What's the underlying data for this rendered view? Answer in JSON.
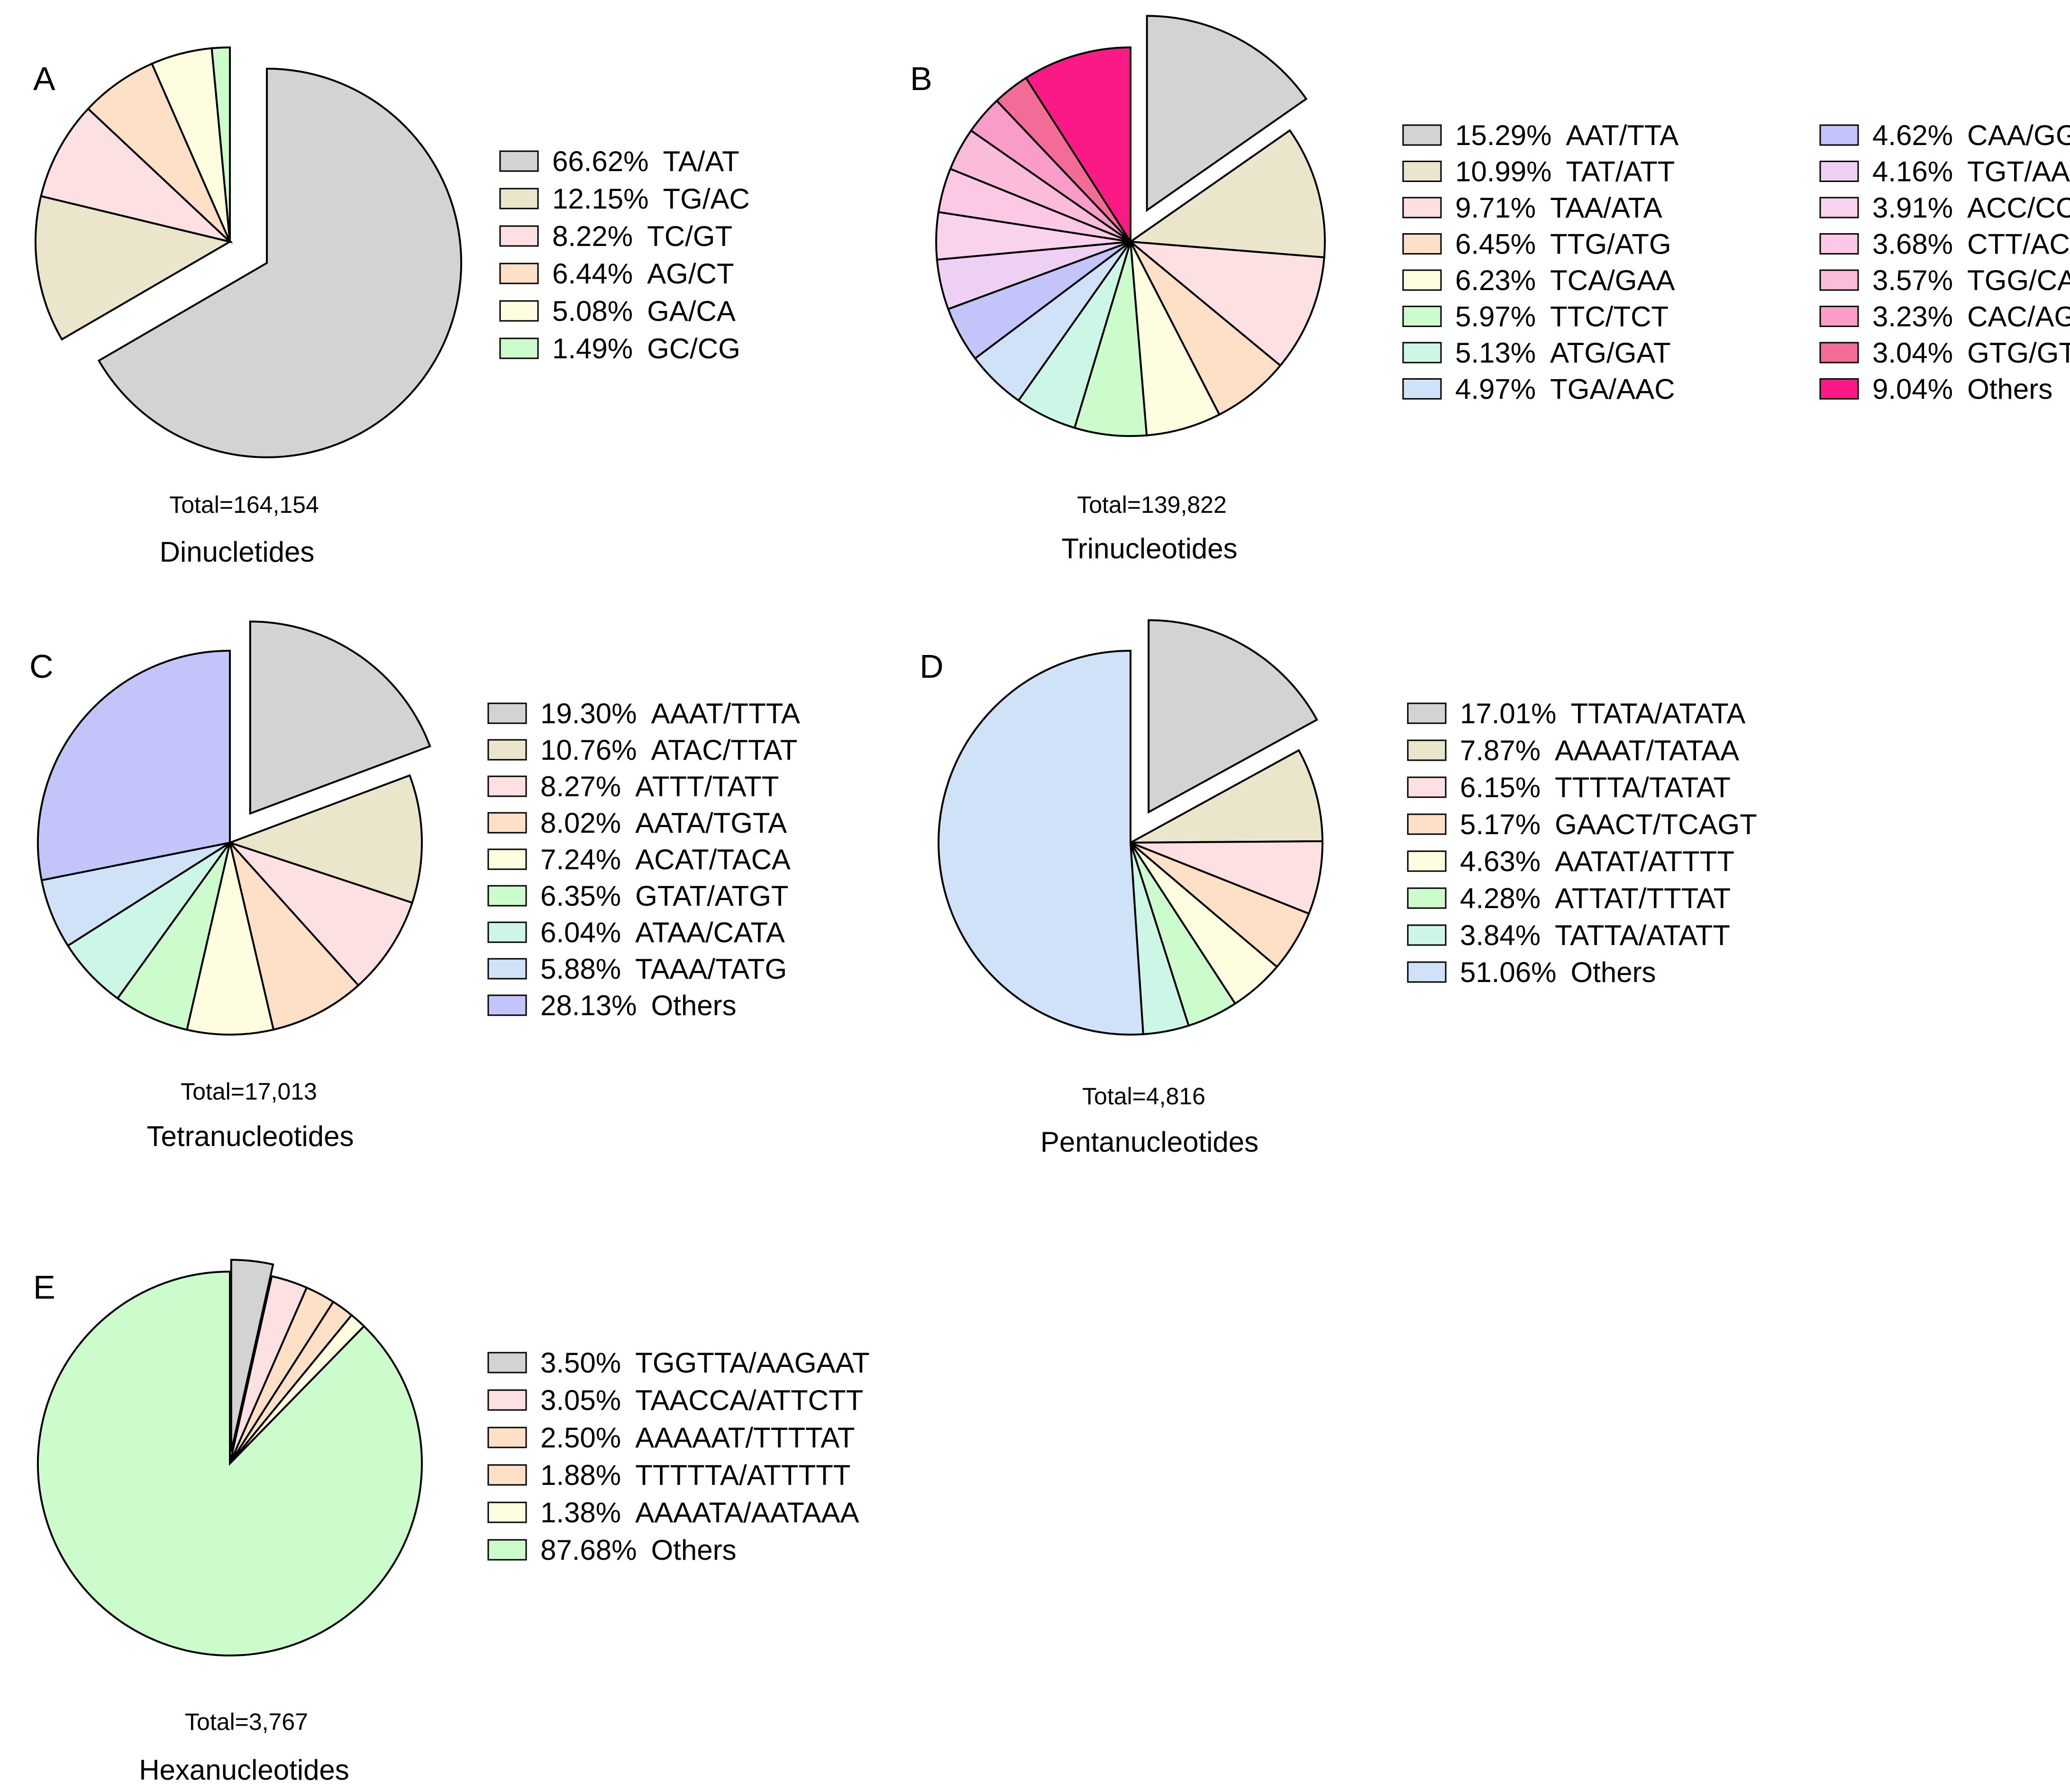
{
  "chart_data": [
    {
      "type": "pie",
      "panel": "A",
      "title": "Dinucletides",
      "total_label": "Total=164,154",
      "legend_columns": 1,
      "slices": [
        {
          "value": 66.62,
          "pct_label": "66.62%",
          "label": "TA/AT",
          "color": "#d3d3d3",
          "exploded": true
        },
        {
          "value": 12.15,
          "pct_label": "12.15%",
          "label": "TG/AC",
          "color": "#ebe5cc",
          "exploded": false
        },
        {
          "value": 8.22,
          "pct_label": "8.22%",
          "label": "TC/GT",
          "color": "#fde0e2",
          "exploded": false
        },
        {
          "value": 6.44,
          "pct_label": "6.44%",
          "label": "AG/CT",
          "color": "#fde0c6",
          "exploded": false
        },
        {
          "value": 5.08,
          "pct_label": "5.08%",
          "label": "GA/CA",
          "color": "#fefde0",
          "exploded": false
        },
        {
          "value": 1.49,
          "pct_label": "1.49%",
          "label": "GC/CG",
          "color": "#ccfccc",
          "exploded": false
        }
      ]
    },
    {
      "type": "pie",
      "panel": "B",
      "title": "Trinucleotides",
      "total_label": "Total=139,822",
      "legend_columns": 2,
      "slices": [
        {
          "value": 15.29,
          "pct_label": "15.29%",
          "label": "AAT/TTA",
          "color": "#d3d3d3",
          "exploded": true
        },
        {
          "value": 10.99,
          "pct_label": "10.99%",
          "label": "TAT/ATT",
          "color": "#ebe5cc",
          "exploded": false
        },
        {
          "value": 9.71,
          "pct_label": "9.71%",
          "label": "TAA/ATA",
          "color": "#fde0e2",
          "exploded": false
        },
        {
          "value": 6.45,
          "pct_label": "6.45%",
          "label": "TTG/ATG",
          "color": "#fde0c6",
          "exploded": false
        },
        {
          "value": 6.23,
          "pct_label": "6.23%",
          "label": "TCA/GAA",
          "color": "#fefde0",
          "exploded": false
        },
        {
          "value": 5.97,
          "pct_label": "5.97%",
          "label": "TTC/TCT",
          "color": "#ccfccc",
          "exploded": false
        },
        {
          "value": 5.13,
          "pct_label": "5.13%",
          "label": "ATG/GAT",
          "color": "#ccf7e6",
          "exploded": false
        },
        {
          "value": 4.97,
          "pct_label": "4.97%",
          "label": "TGA/AAC",
          "color": "#cfe2f7",
          "exploded": false
        },
        {
          "value": 4.62,
          "pct_label": "4.62%",
          "label": "CAA/GGT",
          "color": "#c2c4fa",
          "exploded": false
        },
        {
          "value": 4.16,
          "pct_label": "4.16%",
          "label": "TGT/AAG",
          "color": "#efd0f5",
          "exploded": false
        },
        {
          "value": 3.91,
          "pct_label": "3.91%",
          "label": "ACC/CCA",
          "color": "#f9d2ee",
          "exploded": false
        },
        {
          "value": 3.68,
          "pct_label": "3.68%",
          "label": "CTT/ACA",
          "color": "#fcc8e6",
          "exploded": false
        },
        {
          "value": 3.57,
          "pct_label": "3.57%",
          "label": "TGG/CAT",
          "color": "#fbbcdc",
          "exploded": false
        },
        {
          "value": 3.23,
          "pct_label": "3.23%",
          "label": "CAC/AGA",
          "color": "#f99cc9",
          "exploded": false
        },
        {
          "value": 3.04,
          "pct_label": "3.04%",
          "label": "GTG/GTT",
          "color": "#f36c98",
          "exploded": false
        },
        {
          "value": 9.04,
          "pct_label": "9.04%",
          "label": "Others",
          "color": "#fb1a85",
          "exploded": false
        }
      ]
    },
    {
      "type": "pie",
      "panel": "C",
      "title": "Tetranucleotides",
      "total_label": "Total=17,013",
      "legend_columns": 1,
      "slices": [
        {
          "value": 19.3,
          "pct_label": "19.30%",
          "label": "AAAT/TTTA",
          "color": "#d3d3d3",
          "exploded": true
        },
        {
          "value": 10.76,
          "pct_label": "10.76%",
          "label": "ATAC/TTAT",
          "color": "#ebe5cc",
          "exploded": false
        },
        {
          "value": 8.27,
          "pct_label": "8.27%",
          "label": "ATTT/TATT",
          "color": "#fde0e2",
          "exploded": false
        },
        {
          "value": 8.02,
          "pct_label": "8.02%",
          "label": "AATA/TGTA",
          "color": "#fde0c6",
          "exploded": false
        },
        {
          "value": 7.24,
          "pct_label": "7.24%",
          "label": "ACAT/TACA",
          "color": "#fefde0",
          "exploded": false
        },
        {
          "value": 6.35,
          "pct_label": "6.35%",
          "label": "GTAT/ATGT",
          "color": "#ccfccc",
          "exploded": false
        },
        {
          "value": 6.04,
          "pct_label": "6.04%",
          "label": "ATAA/CATA",
          "color": "#ccf7e6",
          "exploded": false
        },
        {
          "value": 5.88,
          "pct_label": "5.88%",
          "label": "TAAA/TATG",
          "color": "#cfe2f7",
          "exploded": false
        },
        {
          "value": 28.13,
          "pct_label": "28.13%",
          "label": "Others",
          "color": "#c2c4fa",
          "exploded": false
        }
      ]
    },
    {
      "type": "pie",
      "panel": "D",
      "title": "Pentanucleotides",
      "total_label": "Total=4,816",
      "legend_columns": 1,
      "slices": [
        {
          "value": 17.01,
          "pct_label": "17.01%",
          "label": "TTATA/ATATA",
          "color": "#d3d3d3",
          "exploded": true
        },
        {
          "value": 7.87,
          "pct_label": "7.87%",
          "label": "AAAAT/TATAA",
          "color": "#ebe5cc",
          "exploded": false
        },
        {
          "value": 6.15,
          "pct_label": "6.15%",
          "label": "TTTTA/TATAT",
          "color": "#fde0e2",
          "exploded": false
        },
        {
          "value": 5.17,
          "pct_label": "5.17%",
          "label": "GAACT/TCAGT",
          "color": "#fde0c6",
          "exploded": false
        },
        {
          "value": 4.63,
          "pct_label": "4.63%",
          "label": "AATAT/ATTTT",
          "color": "#fefde0",
          "exploded": false
        },
        {
          "value": 4.28,
          "pct_label": "4.28%",
          "label": "ATTAT/TTTAT",
          "color": "#ccfccc",
          "exploded": false
        },
        {
          "value": 3.84,
          "pct_label": "3.84%",
          "label": "TATTA/ATATT",
          "color": "#ccf7e6",
          "exploded": false
        },
        {
          "value": 51.06,
          "pct_label": "51.06%",
          "label": "Others",
          "color": "#cfe2f7",
          "exploded": false
        }
      ]
    },
    {
      "type": "pie",
      "panel": "E",
      "title": "Hexanucleotides",
      "total_label": "Total=3,767",
      "legend_columns": 1,
      "slices": [
        {
          "value": 3.5,
          "pct_label": "3.50%",
          "label": "TGGTTA/AAGAAT",
          "color": "#d3d3d3",
          "exploded": true
        },
        {
          "value": 3.05,
          "pct_label": "3.05%",
          "label": "TAACCA/ATTCTT",
          "color": "#fde0e2",
          "exploded": false
        },
        {
          "value": 2.5,
          "pct_label": "2.50%",
          "label": "AAAAAT/TTTTAT",
          "color": "#fde0c6",
          "exploded": false
        },
        {
          "value": 1.88,
          "pct_label": "1.88%",
          "label": "TTTTTA/ATTTTT",
          "color": "#fde0c6",
          "exploded": false
        },
        {
          "value": 1.38,
          "pct_label": "1.38%",
          "label": "AAAATA/AATAAA",
          "color": "#fefde0",
          "exploded": false
        },
        {
          "value": 87.68,
          "pct_label": "87.68%",
          "label": "Others",
          "color": "#ccfccc",
          "exploded": false
        }
      ]
    }
  ]
}
